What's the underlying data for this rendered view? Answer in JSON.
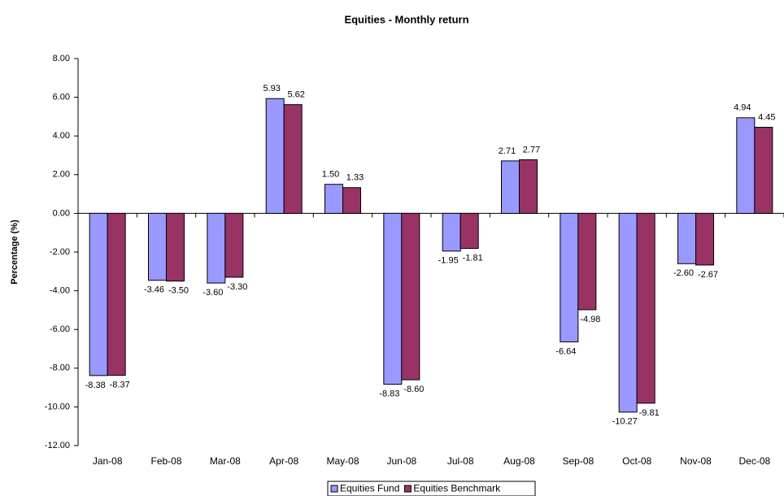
{
  "chart_data": {
    "type": "bar",
    "title": "Equities - Monthly return",
    "y_label": "Percentage (%)",
    "categories": [
      "Jan-08",
      "Feb-08",
      "Mar-08",
      "Apr-08",
      "May-08",
      "Jun-08",
      "Jul-08",
      "Aug-08",
      "Sep-08",
      "Oct-08",
      "Nov-08",
      "Dec-08"
    ],
    "series": [
      {
        "name": "Equities Fund",
        "color": "#9999ff",
        "values": [
          -8.38,
          -3.46,
          -3.6,
          5.93,
          1.5,
          -8.83,
          -1.95,
          2.71,
          -6.64,
          -10.27,
          -2.6,
          4.94
        ],
        "value_labels": [
          "-8.38",
          "-3.46",
          "-3.60",
          "5.93",
          "1.50",
          "-8.83",
          "-1.95",
          "2.71",
          "-6.64",
          "-10.27",
          "-2.60",
          "4.94"
        ]
      },
      {
        "name": "Equities Benchmark",
        "color": "#993366",
        "values": [
          -8.37,
          -3.5,
          -3.3,
          5.62,
          1.33,
          -8.6,
          -1.81,
          2.77,
          -4.98,
          -9.81,
          -2.67,
          4.45
        ],
        "value_labels": [
          "-8.37",
          "-3.50",
          "-3.30",
          "5.62",
          "1.33",
          "-8.60",
          "-1.81",
          "2.77",
          "-4.98",
          "-9.81",
          "-2.67",
          "4.45"
        ]
      }
    ],
    "ylim": [
      -12,
      8
    ],
    "yticks": [
      {
        "value": -12,
        "label": "-12.00"
      },
      {
        "value": -10,
        "label": "-10.00"
      },
      {
        "value": -8,
        "label": "-8.00"
      },
      {
        "value": -6,
        "label": "-6.00"
      },
      {
        "value": -4,
        "label": "-4.00"
      },
      {
        "value": -2,
        "label": "-2.00"
      },
      {
        "value": 0,
        "label": "0.00"
      },
      {
        "value": 2,
        "label": "2.00"
      },
      {
        "value": 4,
        "label": "4.00"
      },
      {
        "value": 6,
        "label": "6.00"
      },
      {
        "value": 8,
        "label": "8.00"
      }
    ],
    "grid": false,
    "legend": "bottom"
  }
}
